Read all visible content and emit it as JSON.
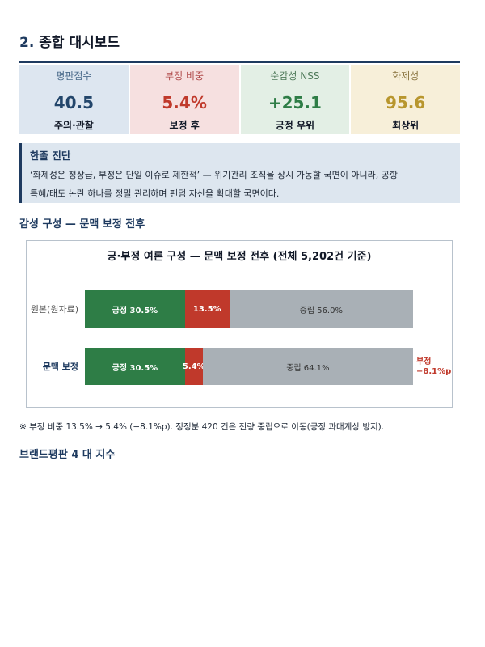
{
  "section": {
    "number": "2.",
    "title": "종합 대시보드"
  },
  "kpis": [
    {
      "label": "평판점수",
      "value": "40.5",
      "sub": "주의·관찰"
    },
    {
      "label": "부정 비중",
      "value": "5.4%",
      "sub": "보정 후"
    },
    {
      "label": "순감성 NSS",
      "value": "+25.1",
      "sub": "긍정 우위"
    },
    {
      "label": "화제성",
      "value": "95.6",
      "sub": "최상위"
    }
  ],
  "diagnosis": {
    "heading": "한줄 진단",
    "line1": "‘화제성은 정상급, 부정은 단일 이슈로 제한적’ — 위기관리 조직을 상시 가동할 국면이 아니라, 공항",
    "line2": "특혜/태도 논란 하나를 정밀 관리하며 팬덤 자산을 확대할 국면이다."
  },
  "subsection_title": "감성 구성 — 문맥 보정 전후",
  "chart_data": {
    "type": "bar",
    "stacked": true,
    "orientation": "horizontal",
    "title": "긍·부정 여론 구성 — 문맥 보정 전후 (전체 5,202건 기준)",
    "categories": [
      "원본(원자료)",
      "문맥 보정"
    ],
    "series": [
      {
        "name": "긍정",
        "values": [
          30.5,
          30.5
        ],
        "labels": [
          "긍정 30.5%",
          "긍정 30.5%"
        ],
        "color": "#2e7d46"
      },
      {
        "name": "부정",
        "values": [
          13.5,
          5.4
        ],
        "labels": [
          "13.5%",
          "5.4%"
        ],
        "color": "#c0392b"
      },
      {
        "name": "중립",
        "values": [
          56.0,
          64.1
        ],
        "labels": [
          "중립 56.0%",
          "중립 64.1%"
        ],
        "color": "#a9b0b6"
      }
    ],
    "xlim": [
      0,
      100
    ],
    "annotation": {
      "line1": "부정",
      "line2": "−8.1%p"
    }
  },
  "footnote": "※ 부정 비중 13.5% → 5.4% (−8.1%p). 정정분 420 건은 전량 중립으로 이동(긍정 과대계상 방지).",
  "next_subsection_title": "브랜드평판 4 대 지수"
}
